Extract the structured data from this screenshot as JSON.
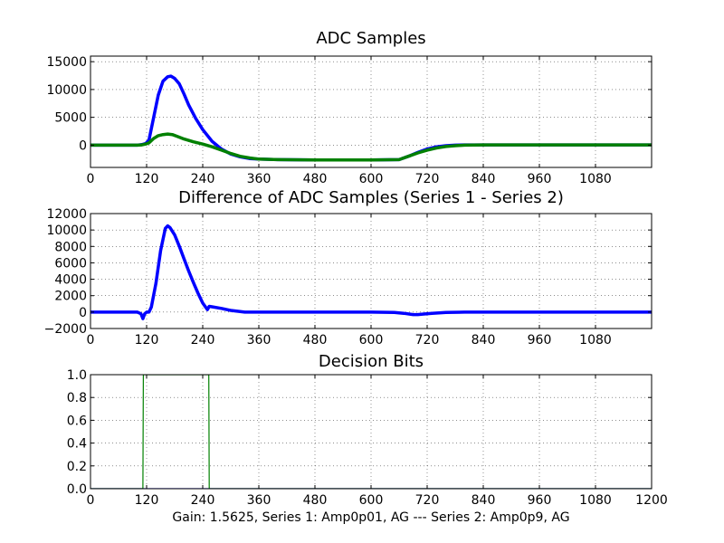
{
  "chart_data": [
    {
      "type": "line",
      "title": "ADC Samples",
      "xlim": [
        0,
        1200
      ],
      "ylim": [
        -4000,
        16000
      ],
      "xticks": [
        0,
        120,
        240,
        360,
        480,
        600,
        720,
        840,
        960,
        1080
      ],
      "xtick_labels": [
        "0",
        "120",
        "240",
        "360",
        "480",
        "600",
        "720",
        "840",
        "960",
        "1080"
      ],
      "yticks": [
        0,
        5000,
        10000,
        15000
      ],
      "ytick_labels": [
        "0",
        "5000",
        "10000",
        "15000"
      ],
      "grid": true,
      "series": [
        {
          "name": "Series 1",
          "color": "#0000ff",
          "x": [
            0,
            100,
            110,
            118,
            125,
            135,
            145,
            155,
            165,
            172,
            180,
            190,
            200,
            210,
            225,
            240,
            260,
            280,
            300,
            320,
            340,
            360,
            400,
            480,
            600,
            660,
            680,
            700,
            720,
            740,
            760,
            780,
            800,
            840,
            960,
            1080,
            1200
          ],
          "y": [
            0,
            0,
            100,
            300,
            900,
            5000,
            9000,
            11500,
            12300,
            12400,
            12000,
            11000,
            9200,
            7200,
            4800,
            2800,
            700,
            -700,
            -1600,
            -2100,
            -2400,
            -2500,
            -2600,
            -2650,
            -2650,
            -2600,
            -2000,
            -1300,
            -700,
            -300,
            -100,
            0,
            50,
            50,
            50,
            50,
            50
          ]
        },
        {
          "name": "Series 2",
          "color": "#008000",
          "x": [
            0,
            100,
            110,
            118,
            125,
            135,
            145,
            155,
            165,
            175,
            185,
            200,
            220,
            240,
            260,
            280,
            300,
            320,
            340,
            360,
            400,
            480,
            600,
            660,
            680,
            700,
            720,
            740,
            760,
            780,
            800,
            840,
            960,
            1080,
            1200
          ],
          "y": [
            0,
            0,
            50,
            200,
            400,
            1200,
            1700,
            1900,
            2000,
            1900,
            1600,
            1100,
            600,
            200,
            -300,
            -900,
            -1500,
            -2000,
            -2300,
            -2500,
            -2600,
            -2650,
            -2650,
            -2600,
            -2000,
            -1400,
            -900,
            -500,
            -250,
            -100,
            0,
            50,
            50,
            50,
            50
          ]
        }
      ]
    },
    {
      "type": "line",
      "title": "Difference of ADC Samples (Series 1 - Series 2)",
      "xlim": [
        0,
        1200
      ],
      "ylim": [
        -2000,
        12000
      ],
      "xticks": [
        0,
        120,
        240,
        360,
        480,
        600,
        720,
        840,
        960,
        1080
      ],
      "xtick_labels": [
        "0",
        "120",
        "240",
        "360",
        "480",
        "600",
        "720",
        "840",
        "960",
        "1080"
      ],
      "yticks": [
        -2000,
        0,
        2000,
        4000,
        6000,
        8000,
        10000,
        12000
      ],
      "ytick_labels": [
        "−2000",
        "0",
        "2000",
        "4000",
        "6000",
        "8000",
        "10000",
        "12000"
      ],
      "grid": true,
      "series": [
        {
          "name": "Series 1 - Series 2",
          "color": "#0000ff",
          "x": [
            0,
            100,
            108,
            112,
            116,
            120,
            125,
            130,
            140,
            150,
            160,
            165,
            170,
            180,
            190,
            200,
            210,
            220,
            230,
            240,
            250,
            254,
            260,
            280,
            300,
            330,
            360,
            420,
            480,
            600,
            650,
            670,
            690,
            700,
            710,
            730,
            760,
            800,
            840,
            960,
            1080,
            1200
          ],
          "y": [
            0,
            0,
            -200,
            -800,
            -200,
            0,
            0,
            600,
            3500,
            7500,
            10200,
            10500,
            10300,
            9400,
            8000,
            6500,
            5000,
            3600,
            2300,
            1100,
            300,
            700,
            650,
            450,
            200,
            0,
            0,
            0,
            0,
            0,
            -50,
            -150,
            -300,
            -300,
            -250,
            -150,
            -50,
            0,
            0,
            0,
            0,
            0
          ]
        }
      ]
    },
    {
      "type": "line",
      "title": "Decision Bits",
      "xlim": [
        0,
        1200
      ],
      "ylim": [
        0,
        1
      ],
      "xticks": [
        0,
        120,
        240,
        360,
        480,
        600,
        720,
        840,
        960,
        1080,
        1200
      ],
      "xtick_labels": [
        "0",
        "120",
        "240",
        "360",
        "480",
        "600",
        "720",
        "840",
        "960",
        "1080",
        "1200"
      ],
      "yticks": [
        0,
        0.2,
        0.4,
        0.6,
        0.8,
        1.0
      ],
      "ytick_labels": [
        "0.0",
        "0.2",
        "0.4",
        "0.6",
        "0.8",
        "1.0"
      ],
      "xlabel": "Gain: 1.5625, Series 1: Amp0p01, AG --- Series 2: Amp0p9, AG",
      "grid": true,
      "series": [
        {
          "name": "Series 1",
          "color": "#0000ff",
          "x": [
            0,
            1200
          ],
          "y": [
            0,
            0
          ]
        },
        {
          "name": "Series 2",
          "color": "#008000",
          "x": [
            0,
            112,
            113,
            253,
            254,
            1200
          ],
          "y": [
            0,
            0,
            1,
            1,
            0,
            0
          ]
        }
      ]
    }
  ]
}
